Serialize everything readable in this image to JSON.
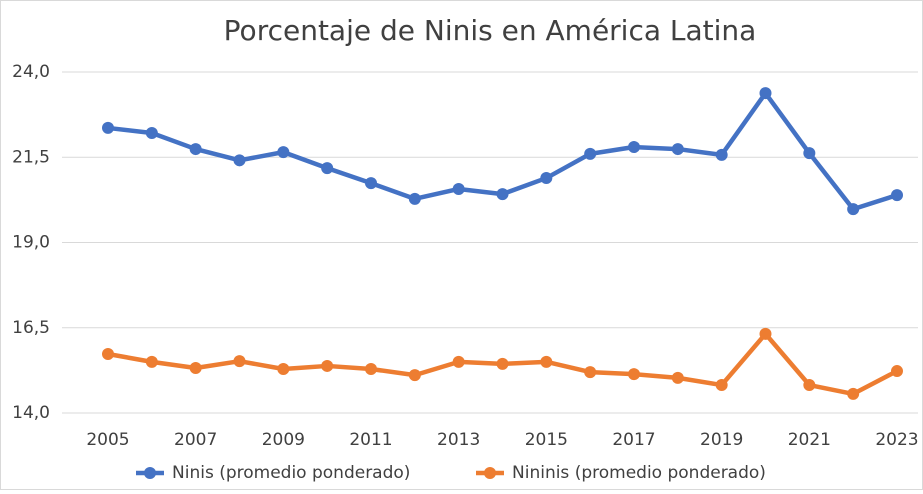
{
  "chart_data": {
    "type": "line",
    "title": "Porcentaje de Ninis en América Latina",
    "categories": [
      "2005",
      null,
      "2007",
      null,
      "2009",
      null,
      "2011",
      null,
      "2013",
      null,
      "2015",
      null,
      "2017",
      null,
      "2019",
      null,
      "2021",
      null,
      "2023"
    ],
    "series": [
      {
        "name": "Ninis (promedio ponderado)",
        "color": "#4472c4",
        "values": [
          22.36,
          22.21,
          21.74,
          21.41,
          21.65,
          21.18,
          20.74,
          20.28,
          20.57,
          20.42,
          20.89,
          21.6,
          21.8,
          21.74,
          21.57,
          23.38,
          21.62,
          19.98,
          20.39
        ]
      },
      {
        "name": "Nininis (promedio ponderado)",
        "color": "#ed7d31",
        "values": [
          15.73,
          15.5,
          15.32,
          15.52,
          15.29,
          15.38,
          15.29,
          15.11,
          15.5,
          15.44,
          15.5,
          15.2,
          15.14,
          15.03,
          14.82,
          16.32,
          14.82,
          14.56,
          15.23
        ]
      }
    ],
    "ylim": [
      14,
      24
    ],
    "yticks": [
      {
        "value": 14,
        "label": "14,0"
      },
      {
        "value": 16.5,
        "label": "16,5"
      },
      {
        "value": 19,
        "label": "19,0"
      },
      {
        "value": 21.5,
        "label": "21,5"
      },
      {
        "value": 24,
        "label": "24,0"
      }
    ],
    "grid": true,
    "legend": "bottom"
  }
}
